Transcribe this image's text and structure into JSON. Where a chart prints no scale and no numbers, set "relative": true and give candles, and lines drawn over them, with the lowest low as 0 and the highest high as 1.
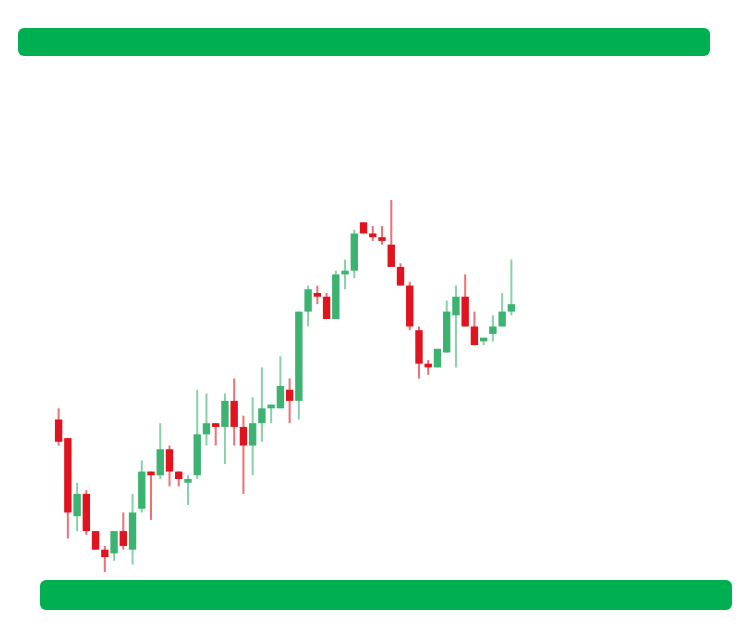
{
  "chart_data": {
    "type": "candlestick",
    "relative": true,
    "categories": [
      null,
      null,
      null,
      null,
      null,
      null,
      null,
      null,
      null,
      null,
      null,
      null,
      null,
      null,
      null,
      null,
      null,
      null,
      null,
      null,
      null,
      null,
      null,
      null,
      null,
      null,
      null,
      null,
      null,
      null,
      null,
      null,
      null,
      null,
      null,
      null,
      null,
      null,
      null,
      null,
      null,
      null,
      null,
      null,
      null,
      null,
      null,
      null,
      null,
      null
    ],
    "ohlc": [
      [
        0.41,
        0.44,
        0.34,
        0.35
      ],
      [
        0.36,
        0.36,
        0.09,
        0.16
      ],
      [
        0.15,
        0.24,
        0.11,
        0.21
      ],
      [
        0.21,
        0.22,
        0.1,
        0.11
      ],
      [
        0.11,
        0.11,
        0.06,
        0.06
      ],
      [
        0.06,
        0.07,
        0,
        0.04
      ],
      [
        0.05,
        0.11,
        0.03,
        0.11
      ],
      [
        0.11,
        0.16,
        0.06,
        0.07
      ],
      [
        0.06,
        0.21,
        0.02,
        0.16
      ],
      [
        0.17,
        0.3,
        0.16,
        0.27
      ],
      [
        0.27,
        0.27,
        0.14,
        0.26
      ],
      [
        0.26,
        0.4,
        0.25,
        0.33
      ],
      [
        0.33,
        0.34,
        0.23,
        0.27
      ],
      [
        0.27,
        0.27,
        0.23,
        0.25
      ],
      [
        0.24,
        0.26,
        0.18,
        0.25
      ],
      [
        0.26,
        0.49,
        0.25,
        0.37
      ],
      [
        0.37,
        0.48,
        0.34,
        0.4
      ],
      [
        0.4,
        0.4,
        0.34,
        0.39
      ],
      [
        0.39,
        0.48,
        0.29,
        0.46
      ],
      [
        0.46,
        0.52,
        0.34,
        0.39
      ],
      [
        0.39,
        0.42,
        0.21,
        0.34
      ],
      [
        0.34,
        0.47,
        0.26,
        0.4
      ],
      [
        0.4,
        0.55,
        0.35,
        0.44
      ],
      [
        0.44,
        0.45,
        0.4,
        0.45
      ],
      [
        0.44,
        0.58,
        0.44,
        0.5
      ],
      [
        0.49,
        0.52,
        0.4,
        0.46
      ],
      [
        0.46,
        0.7,
        0.41,
        0.7
      ],
      [
        0.7,
        0.77,
        0.66,
        0.76
      ],
      [
        0.75,
        0.77,
        0.72,
        0.74
      ],
      [
        0.74,
        0.75,
        0.68,
        0.68
      ],
      [
        0.68,
        0.81,
        0.68,
        0.8
      ],
      [
        0.8,
        0.84,
        0.76,
        0.81
      ],
      [
        0.81,
        0.92,
        0.79,
        0.91
      ],
      [
        0.94,
        0.94,
        0.91,
        0.91
      ],
      [
        0.91,
        0.93,
        0.89,
        0.9
      ],
      [
        0.9,
        0.93,
        0.88,
        0.89
      ],
      [
        0.88,
        1,
        0.82,
        0.82
      ],
      [
        0.82,
        0.83,
        0.77,
        0.77
      ],
      [
        0.77,
        0.78,
        0.65,
        0.66
      ],
      [
        0.65,
        0.66,
        0.52,
        0.56
      ],
      [
        0.56,
        0.57,
        0.53,
        0.55
      ],
      [
        0.55,
        0.6,
        0.55,
        0.6
      ],
      [
        0.59,
        0.73,
        0.59,
        0.7
      ],
      [
        0.69,
        0.77,
        0.55,
        0.74
      ],
      [
        0.74,
        0.8,
        0.66,
        0.66
      ],
      [
        0.66,
        0.7,
        0.61,
        0.61
      ],
      [
        0.62,
        0.63,
        0.61,
        0.63
      ],
      [
        0.64,
        0.69,
        0.62,
        0.66
      ],
      [
        0.66,
        0.75,
        0.66,
        0.7
      ],
      [
        0.7,
        0.84,
        0.69,
        0.72
      ]
    ],
    "colors": [
      "#e0141e",
      "#e0141e",
      "#3cb371",
      "#e0141e",
      "#e0141e",
      "#e0141e",
      "#3cb371",
      "#e0141e",
      "#3cb371",
      "#3cb371",
      "#e0141e",
      "#3cb371",
      "#e0141e",
      "#e0141e",
      "#3cb371",
      "#3cb371",
      "#3cb371",
      "#e0141e",
      "#3cb371",
      "#e0141e",
      "#e0141e",
      "#3cb371",
      "#3cb371",
      "#3cb371",
      "#3cb371",
      "#e0141e",
      "#3cb371",
      "#3cb371",
      "#e0141e",
      "#e0141e",
      "#3cb371",
      "#3cb371",
      "#3cb371",
      "#e0141e",
      "#e0141e",
      "#e0141e",
      "#e0141e",
      "#e0141e",
      "#e0141e",
      "#e0141e",
      "#e0141e",
      "#3cb371",
      "#3cb371",
      "#3cb371",
      "#e0141e",
      "#e0141e",
      "#3cb371",
      "#3cb371",
      "#3cb371",
      "#3cb371"
    ]
  }
}
